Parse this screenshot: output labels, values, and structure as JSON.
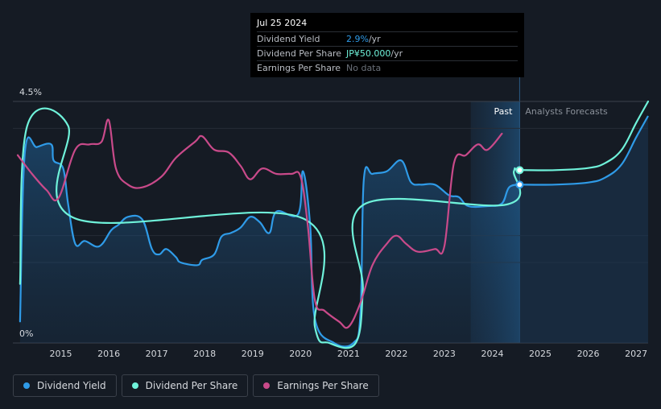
{
  "chart_data": {
    "type": "line",
    "ylim": [
      0,
      4.5
    ],
    "xlim": [
      2014.0,
      2027.25
    ],
    "y_tick_labels": [
      "0%",
      "4.5%"
    ],
    "x_ticks": [
      2015,
      2016,
      2017,
      2018,
      2019,
      2020,
      2021,
      2022,
      2023,
      2024,
      2025,
      2026,
      2027
    ],
    "past_label": "Past",
    "forecast_label": "Analysts Forecasts",
    "past_region": [
      2023.55,
      2024.57
    ],
    "current_x": 2024.57,
    "series": [
      {
        "name": "Dividend Yield",
        "color": "#2f9be8",
        "area": true,
        "points": [
          [
            2014.15,
            0.4
          ],
          [
            2014.25,
            3.55
          ],
          [
            2014.5,
            3.65
          ],
          [
            2014.8,
            3.7
          ],
          [
            2014.85,
            3.4
          ],
          [
            2015.05,
            3.25
          ],
          [
            2015.15,
            2.6
          ],
          [
            2015.3,
            1.85
          ],
          [
            2015.5,
            1.9
          ],
          [
            2015.8,
            1.8
          ],
          [
            2016.05,
            2.1
          ],
          [
            2016.2,
            2.2
          ],
          [
            2016.4,
            2.35
          ],
          [
            2016.7,
            2.3
          ],
          [
            2016.9,
            1.75
          ],
          [
            2017.05,
            1.65
          ],
          [
            2017.2,
            1.75
          ],
          [
            2017.4,
            1.6
          ],
          [
            2017.5,
            1.5
          ],
          [
            2017.85,
            1.45
          ],
          [
            2017.95,
            1.55
          ],
          [
            2018.2,
            1.65
          ],
          [
            2018.35,
            1.98
          ],
          [
            2018.55,
            2.05
          ],
          [
            2018.75,
            2.15
          ],
          [
            2018.95,
            2.35
          ],
          [
            2019.15,
            2.25
          ],
          [
            2019.35,
            2.05
          ],
          [
            2019.5,
            2.45
          ],
          [
            2019.95,
            2.4
          ],
          [
            2020.05,
            3.2
          ],
          [
            2020.2,
            2.2
          ],
          [
            2020.3,
            0.45
          ],
          [
            2020.7,
            0.0
          ],
          [
            2021.1,
            0.0
          ],
          [
            2021.25,
            0.55
          ],
          [
            2021.32,
            3.05
          ],
          [
            2021.5,
            3.15
          ],
          [
            2021.8,
            3.2
          ],
          [
            2022.1,
            3.4
          ],
          [
            2022.3,
            3.0
          ],
          [
            2022.5,
            2.95
          ],
          [
            2022.8,
            2.95
          ],
          [
            2023.1,
            2.75
          ],
          [
            2023.3,
            2.72
          ],
          [
            2023.5,
            2.55
          ],
          [
            2023.9,
            2.55
          ],
          [
            2024.2,
            2.6
          ],
          [
            2024.35,
            2.9
          ],
          [
            2024.57,
            2.95
          ]
        ]
      },
      {
        "name": "Dividend Per Share",
        "color": "#6ff2da",
        "area": false,
        "points": [
          [
            2014.15,
            1.1
          ],
          [
            2014.3,
            4.05
          ],
          [
            2015.15,
            4.05
          ],
          [
            2015.3,
            2.32
          ],
          [
            2020.05,
            2.32
          ],
          [
            2020.3,
            0.3
          ],
          [
            2020.6,
            0.0
          ],
          [
            2021.15,
            0.0
          ],
          [
            2021.3,
            1.0
          ],
          [
            2021.32,
            2.58
          ],
          [
            2024.3,
            2.58
          ],
          [
            2024.45,
            3.2
          ],
          [
            2024.57,
            3.22
          ],
          [
            2025.3,
            3.22
          ],
          [
            2026.0,
            3.26
          ],
          [
            2026.35,
            3.35
          ],
          [
            2026.7,
            3.6
          ],
          [
            2027.0,
            4.1
          ],
          [
            2027.25,
            4.5
          ]
        ]
      },
      {
        "name": "Earnings Per Share",
        "color": "#c94a8a",
        "area": false,
        "points": [
          [
            2014.1,
            3.5
          ],
          [
            2014.4,
            3.15
          ],
          [
            2014.7,
            2.85
          ],
          [
            2014.95,
            2.7
          ],
          [
            2015.3,
            3.6
          ],
          [
            2015.6,
            3.7
          ],
          [
            2015.85,
            3.75
          ],
          [
            2016.0,
            4.15
          ],
          [
            2016.15,
            3.25
          ],
          [
            2016.4,
            2.95
          ],
          [
            2016.7,
            2.9
          ],
          [
            2017.1,
            3.1
          ],
          [
            2017.4,
            3.45
          ],
          [
            2017.8,
            3.75
          ],
          [
            2017.95,
            3.85
          ],
          [
            2018.2,
            3.6
          ],
          [
            2018.5,
            3.55
          ],
          [
            2018.75,
            3.3
          ],
          [
            2018.95,
            3.05
          ],
          [
            2019.2,
            3.25
          ],
          [
            2019.5,
            3.15
          ],
          [
            2019.8,
            3.15
          ],
          [
            2020.0,
            3.1
          ],
          [
            2020.15,
            2.2
          ],
          [
            2020.3,
            0.8
          ],
          [
            2020.5,
            0.6
          ],
          [
            2020.8,
            0.4
          ],
          [
            2021.0,
            0.3
          ],
          [
            2021.25,
            0.75
          ],
          [
            2021.5,
            1.45
          ],
          [
            2021.8,
            1.85
          ],
          [
            2022.0,
            2.0
          ],
          [
            2022.2,
            1.85
          ],
          [
            2022.45,
            1.7
          ],
          [
            2022.8,
            1.75
          ],
          [
            2023.0,
            1.8
          ],
          [
            2023.2,
            3.35
          ],
          [
            2023.45,
            3.5
          ],
          [
            2023.7,
            3.7
          ],
          [
            2023.9,
            3.6
          ],
          [
            2024.2,
            3.9
          ]
        ]
      }
    ],
    "markers": [
      {
        "series": "Dividend Per Share",
        "x": 2024.57,
        "y": 3.22
      },
      {
        "series": "Dividend Yield",
        "x": 2024.57,
        "y": 2.95
      }
    ]
  },
  "tooltip": {
    "date": "Jul 25 2024",
    "rows": [
      {
        "label": "Dividend Yield",
        "value": "2.9%",
        "unit": " /yr"
      },
      {
        "label": "Dividend Per Share",
        "value": "JP¥50.000",
        "unit": " /yr"
      },
      {
        "label": "Earnings Per Share",
        "value": "No data",
        "unit": ""
      }
    ]
  },
  "legend": [
    {
      "label": "Dividend Yield",
      "color": "#2f9be8"
    },
    {
      "label": "Dividend Per Share",
      "color": "#6ff2da"
    },
    {
      "label": "Earnings Per Share",
      "color": "#c94a8a"
    }
  ]
}
